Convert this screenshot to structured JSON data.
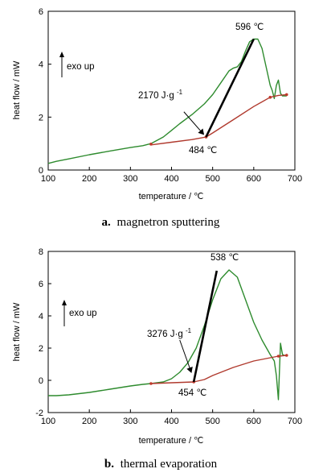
{
  "figure": {
    "panels": [
      {
        "letter": "a.",
        "caption": "magnetron sputtering"
      },
      {
        "letter": "b.",
        "caption": "thermal evaporation"
      }
    ]
  },
  "chart_data": [
    {
      "type": "line",
      "panel": "a",
      "title": "",
      "xlabel": "temperature / ℃",
      "ylabel": "heat flow / mW",
      "xlim": [
        100,
        700
      ],
      "ylim": [
        0,
        6
      ],
      "xticks": [
        100,
        200,
        300,
        400,
        500,
        600,
        700
      ],
      "yticks": [
        0,
        2,
        4,
        6
      ],
      "annotations": {
        "exo": "exo up",
        "peak": "596 ℃",
        "enthalpy": "2170 J·g",
        "enthalpy_sup": "-1",
        "onset": "484 ℃"
      },
      "series": [
        {
          "color": "#2e8b2e",
          "x": [
            100,
            120,
            150,
            200,
            250,
            300,
            330,
            350,
            380,
            400,
            420,
            450,
            480,
            500,
            520,
            540,
            550,
            560,
            570,
            580,
            590,
            600,
            610,
            620,
            630,
            640,
            645,
            650,
            655,
            660,
            665,
            670,
            680
          ],
          "y": [
            0.25,
            0.33,
            0.42,
            0.58,
            0.72,
            0.85,
            0.92,
            1.0,
            1.25,
            1.5,
            1.75,
            2.1,
            2.5,
            2.85,
            3.3,
            3.75,
            3.85,
            3.9,
            4.1,
            4.5,
            4.85,
            4.95,
            4.95,
            4.6,
            3.9,
            3.2,
            3.0,
            2.7,
            3.2,
            3.4,
            2.9,
            2.8,
            2.8
          ]
        },
        {
          "color": "#b03a2e",
          "x": [
            350,
            400,
            450,
            484,
            500,
            550,
            600,
            640,
            660,
            680
          ],
          "y": [
            0.95,
            1.05,
            1.15,
            1.25,
            1.4,
            1.9,
            2.4,
            2.75,
            2.82,
            2.85
          ]
        }
      ],
      "markers": [
        {
          "x": [
            350,
            484,
            640,
            680
          ],
          "y": [
            0.98,
            1.25,
            2.75,
            2.85
          ]
        }
      ],
      "tangent": {
        "x": [
          484,
          600
        ],
        "y": [
          1.25,
          4.95
        ]
      },
      "arrow": {
        "from": [
          430,
          2.2
        ],
        "to": [
          478,
          1.35
        ]
      }
    },
    {
      "type": "line",
      "panel": "b",
      "title": "",
      "xlabel": "temperature / ℃",
      "ylabel": "heat flow / mW",
      "xlim": [
        100,
        700
      ],
      "ylim": [
        -2,
        8
      ],
      "xticks": [
        100,
        200,
        300,
        400,
        500,
        600,
        700
      ],
      "yticks": [
        -2,
        0,
        2,
        4,
        6,
        8
      ],
      "annotations": {
        "exo": "exo up",
        "peak": "538 ℃",
        "enthalpy": "3276 J·g",
        "enthalpy_sup": "-1",
        "onset": "454 ℃"
      },
      "series": [
        {
          "color": "#2e8b2e",
          "x": [
            100,
            120,
            150,
            200,
            250,
            300,
            330,
            350,
            380,
            400,
            420,
            440,
            460,
            480,
            500,
            520,
            540,
            560,
            580,
            600,
            620,
            640,
            650,
            655,
            660,
            665,
            670,
            680
          ],
          "y": [
            -0.95,
            -0.95,
            -0.9,
            -0.75,
            -0.55,
            -0.35,
            -0.25,
            -0.2,
            -0.1,
            0.1,
            0.5,
            1.1,
            2.0,
            3.4,
            5.0,
            6.3,
            6.85,
            6.4,
            5.0,
            3.6,
            2.5,
            1.6,
            1.2,
            0.3,
            -1.2,
            2.3,
            1.6,
            1.5
          ]
        },
        {
          "color": "#b03a2e",
          "x": [
            350,
            400,
            454,
            480,
            500,
            550,
            600,
            640,
            660,
            680
          ],
          "y": [
            -0.2,
            -0.15,
            -0.1,
            0.05,
            0.3,
            0.8,
            1.2,
            1.4,
            1.5,
            1.55
          ]
        }
      ],
      "markers": [
        {
          "x": [
            350,
            454,
            660,
            680
          ],
          "y": [
            -0.2,
            -0.1,
            1.5,
            1.55
          ]
        }
      ],
      "tangent": {
        "x": [
          454,
          510
        ],
        "y": [
          -0.1,
          6.8
        ]
      },
      "arrow": {
        "from": [
          420,
          2.5
        ],
        "to": [
          448,
          0.5
        ]
      }
    }
  ]
}
